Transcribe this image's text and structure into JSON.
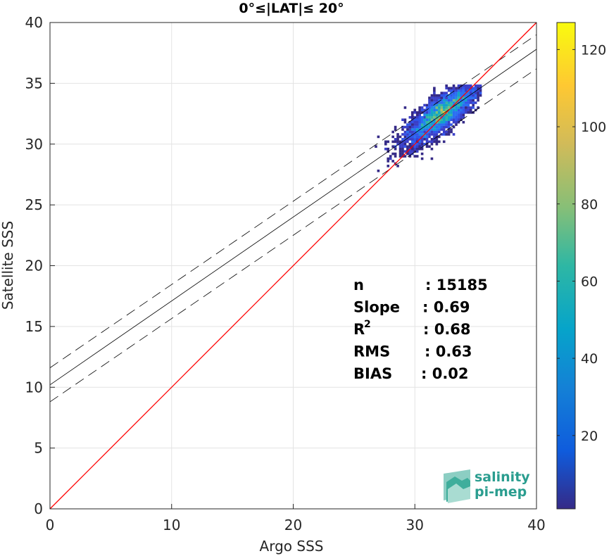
{
  "chart_data": {
    "type": "scatter",
    "title": "0°≤|LAT|≤ 20°",
    "xlabel": "Argo SSS",
    "ylabel": "Satellite SSS",
    "xlim": [
      0,
      40
    ],
    "ylim": [
      0,
      40
    ],
    "xticks": [
      0,
      10,
      20,
      30,
      40
    ],
    "yticks": [
      0,
      5,
      10,
      15,
      20,
      25,
      30,
      35,
      40
    ],
    "grid": true,
    "identity_line": {
      "x": [
        0,
        40
      ],
      "y": [
        0,
        40
      ],
      "color": "#ff0000"
    },
    "fit_line": {
      "x": [
        0,
        40
      ],
      "y": [
        10.2,
        37.8
      ],
      "color": "#000000"
    },
    "fit_bounds_lines": [
      {
        "x": [
          0,
          40
        ],
        "y": [
          11.6,
          39.0
        ]
      },
      {
        "x": [
          0,
          40
        ],
        "y": [
          8.8,
          36.2
        ]
      }
    ],
    "density_cloud": {
      "center": [
        32.2,
        32.5
      ],
      "x_range": [
        26.5,
        35.5
      ],
      "y_range": [
        26.5,
        34.8
      ],
      "peak_count": 127
    },
    "colorbar": {
      "min": 1,
      "max": 127,
      "ticks": [
        20,
        40,
        60,
        80,
        100,
        120
      ],
      "colormap": "parula"
    },
    "stats": [
      {
        "label": "n",
        "value": ": 15185"
      },
      {
        "label": "Slope",
        "value": ": 0.69"
      },
      {
        "label": "R",
        "sup": "2",
        "value": ": 0.68"
      },
      {
        "label": "RMS",
        "value": ": 0.63"
      },
      {
        "label": "BIAS",
        "value": ": 0.02"
      }
    ]
  },
  "logo": {
    "line1": "salinity",
    "line2": "pi-mep",
    "color": "#2a9d8f"
  }
}
